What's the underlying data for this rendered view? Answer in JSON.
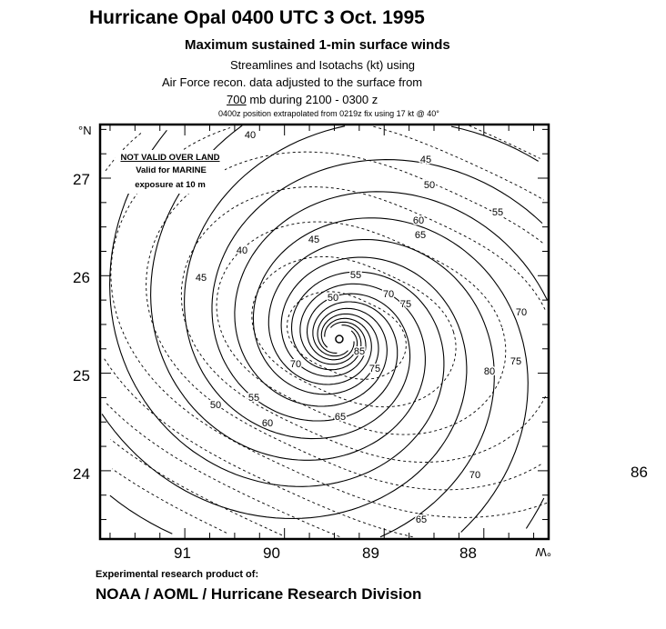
{
  "title": "Hurricane Opal 0400 UTC 3 Oct. 1995",
  "subtitle": "Maximum sustained 1-min surface winds",
  "line2": "Streamlines and Isotachs (kt) using",
  "line3": "Air Force recon. data adjusted to the surface from",
  "line4_level": "700",
  "line4_rest": " mb during 2100 - 0300 z",
  "note": "0400z position extrapolated from 0219z fix using 17 kt @ 40°",
  "warning": {
    "line1": "NOT VALID OVER LAND",
    "line2": "Valid for MARINE",
    "line3": "exposure at 10 m"
  },
  "credit": {
    "line1": "Experimental research product of:",
    "line2": "NOAA / AOML / Hurricane Research Division"
  },
  "stray_label": "86",
  "chart_data": {
    "type": "contour-map",
    "lat_unit": "°N",
    "lon_unit": "°W",
    "lat_ticks": [
      "27",
      "26",
      "25",
      "24"
    ],
    "lon_ticks": [
      "91",
      "90",
      "89",
      "88"
    ],
    "lon_range": [
      91.85,
      87.35
    ],
    "lat_range": [
      23.3,
      27.55
    ],
    "center": {
      "lon": 89.45,
      "lat": 25.35
    },
    "isotach_labels": [
      "40",
      "45",
      "50",
      "55",
      "60",
      "65",
      "40",
      "45",
      "45",
      "55",
      "50",
      "70",
      "75",
      "70",
      "75",
      "80",
      "85",
      "70",
      "75",
      "50",
      "55",
      "60",
      "65",
      "70",
      "65"
    ],
    "isotach_levels": [
      40,
      45,
      50,
      55,
      60,
      65,
      70,
      75,
      80,
      85
    ]
  }
}
